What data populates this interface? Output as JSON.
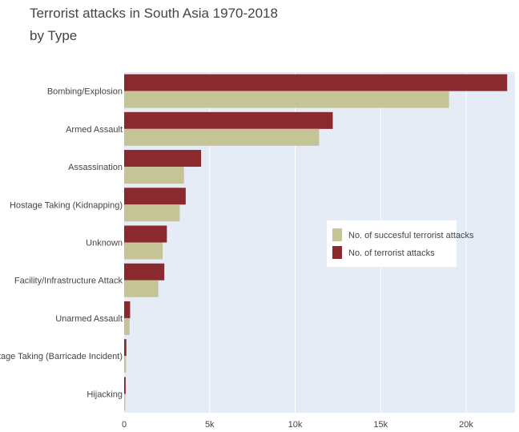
{
  "chart_data": {
    "type": "bar",
    "orientation": "horizontal",
    "title_lines": [
      "Terrorist attacks in South Asia 1970-2018",
      "by Type"
    ],
    "categories": [
      "Bombing/Explosion",
      "Armed Assault",
      "Assassination",
      "Hostage Taking (Kidnapping)",
      "Unknown",
      "Facility/Infrastructure Attack",
      "Unarmed Assault",
      "Hostage Taking (Barricade Incident)",
      "Hijacking"
    ],
    "series": [
      {
        "name": "No. of terrorist attacks",
        "color": "#8b2a2e",
        "values": [
          22400,
          12200,
          4500,
          3600,
          2500,
          2350,
          350,
          130,
          90
        ]
      },
      {
        "name": "No. of succesful terrorist attacks",
        "color": "#c5c496",
        "values": [
          19000,
          11400,
          3500,
          3250,
          2250,
          2000,
          320,
          110,
          70
        ]
      }
    ],
    "xlim": [
      0,
      23000
    ],
    "xticks": [
      0,
      5000,
      10000,
      15000,
      20000
    ],
    "xtick_labels": [
      "0",
      "5k",
      "10k",
      "15k",
      "20k"
    ],
    "legend_order": [
      "No. of succesful terrorist attacks",
      "No. of terrorist attacks"
    ],
    "legend_position": "right-middle",
    "grid": true,
    "plot_background": "#e5ecf6"
  }
}
